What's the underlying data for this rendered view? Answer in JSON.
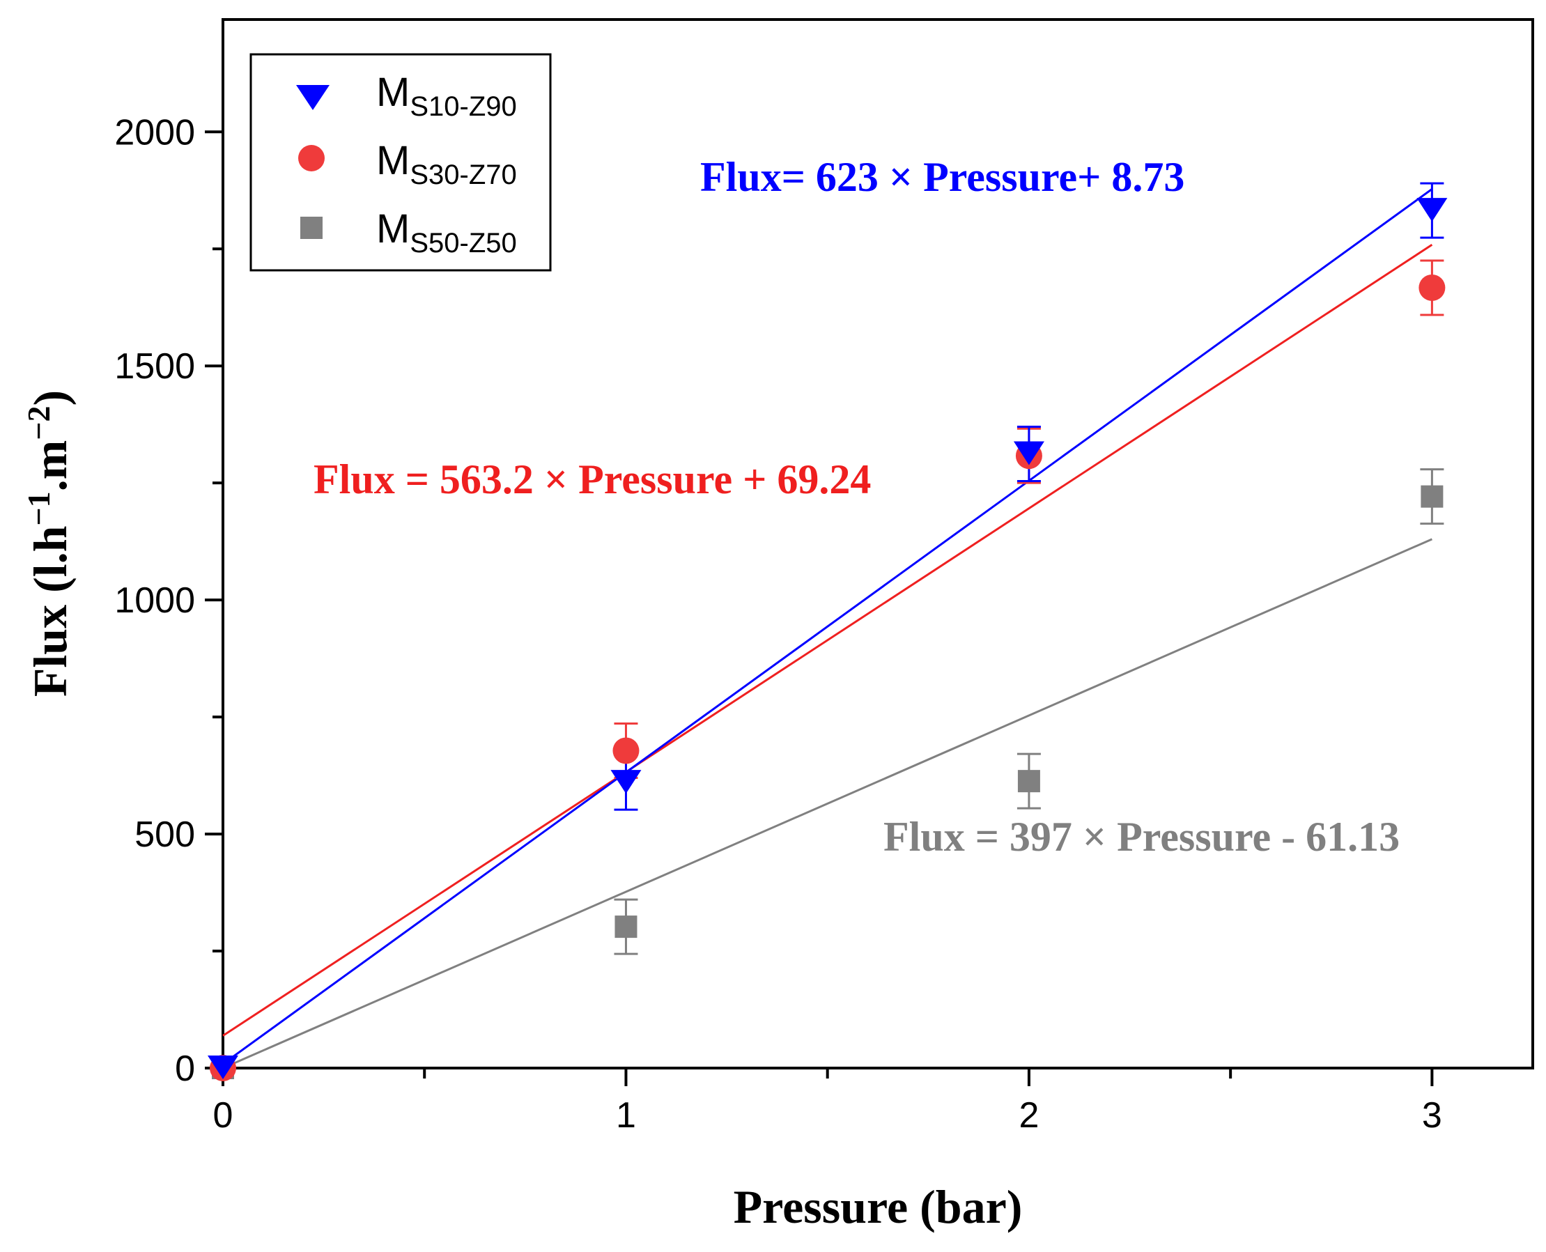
{
  "chart_data": {
    "type": "scatter",
    "xlabel": "Pressure (bar)",
    "ylabel_main": "Flux (l.h",
    "ylabel_exp1": "−1",
    "ylabel_mid": ".m",
    "ylabel_exp2": "−2",
    "ylabel_end": ")",
    "xlim": [
      0,
      3.25
    ],
    "ylim": [
      0,
      2240
    ],
    "x_ticks": [
      0,
      1,
      2,
      3
    ],
    "x_tick_labels": [
      "0",
      "1",
      "2",
      "3"
    ],
    "x_minor_ticks": [
      0.5,
      1.5,
      2.5
    ],
    "y_ticks": [
      0,
      500,
      1000,
      1500,
      2000
    ],
    "y_tick_labels": [
      "0",
      "500",
      "1000",
      "1500",
      "2000"
    ],
    "y_minor_ticks": [
      250,
      750,
      1250,
      1750
    ],
    "legend_position": "top-left",
    "series": [
      {
        "name": "MS10-Z90",
        "legend_main": "M",
        "legend_sub": "S10-Z90",
        "marker": "triangle-down",
        "color": "#0000ff",
        "x": [
          0,
          1,
          2,
          3
        ],
        "y": [
          0,
          610,
          1312,
          1832
        ],
        "error": [
          0,
          58,
          58,
          58
        ],
        "fit": {
          "slope": 623,
          "intercept": 8.73,
          "x_range": [
            0,
            3
          ]
        },
        "equation": "Flux= 623 × Pressure+ 8.73"
      },
      {
        "name": "MS30-Z70",
        "legend_main": "M",
        "legend_sub": "S30-Z70",
        "marker": "circle",
        "color": "#ef3b3b",
        "x": [
          0,
          1,
          2,
          3
        ],
        "y": [
          0,
          678,
          1308,
          1667
        ],
        "error": [
          0,
          58,
          58,
          58
        ],
        "fit": {
          "slope": 563.2,
          "intercept": 69.24,
          "x_range": [
            0,
            3
          ]
        },
        "equation": "Flux = 563.2 × Pressure + 69.24"
      },
      {
        "name": "MS50-Z50",
        "legend_main": "M",
        "legend_sub": "S50-Z50",
        "marker": "square",
        "color": "#808080",
        "x": [
          0,
          1,
          2,
          3
        ],
        "y": [
          0,
          302,
          613,
          1221
        ],
        "error": [
          0,
          58,
          58,
          58
        ],
        "fit": {
          "slope": 397,
          "intercept": -61.13,
          "x_range": [
            0,
            3
          ]
        },
        "equation": "Flux = 397 × Pressure - 61.13"
      }
    ]
  }
}
